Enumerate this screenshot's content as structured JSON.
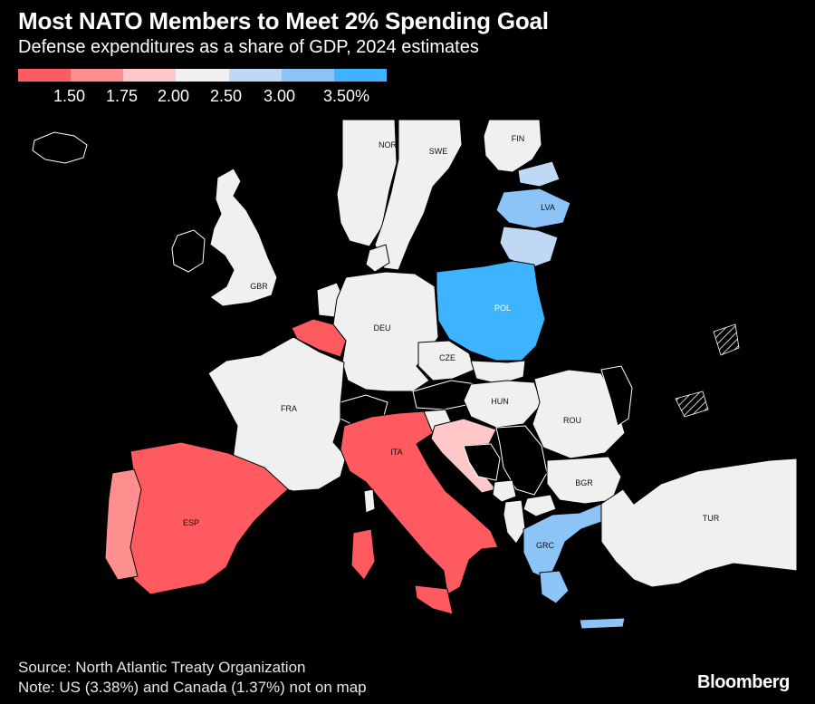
{
  "header": {
    "title": "Most NATO Members to Meet 2% Spending Goal",
    "subtitle": "Defense expenditures as a share of GDP, 2024 estimates"
  },
  "legend": {
    "colors": [
      "#ff5a5f",
      "#ff8f8f",
      "#ffc7c7",
      "#f0f0f0",
      "#bfd9f5",
      "#8cc4f7",
      "#3eb4ff"
    ],
    "ticks": [
      "1.50",
      "1.75",
      "2.00",
      "2.50",
      "3.00",
      "3.50%"
    ]
  },
  "map": {
    "countries": {
      "NOR": "NOR",
      "SWE": "SWE",
      "FIN": "FIN",
      "LVA": "LVA",
      "GBR": "GBR",
      "DEU": "DEU",
      "POL": "POL",
      "CZE": "CZE",
      "FRA": "FRA",
      "HUN": "HUN",
      "ROU": "ROU",
      "ITA": "ITA",
      "BGR": "BGR",
      "ESP": "ESP",
      "TUR": "TUR",
      "GRC": "GRC"
    }
  },
  "footer": {
    "source": "Source: North Atlantic Treaty Organization",
    "note": "Note: US (3.38%) and Canada (1.37%) not on map",
    "brand": "Bloomberg"
  }
}
